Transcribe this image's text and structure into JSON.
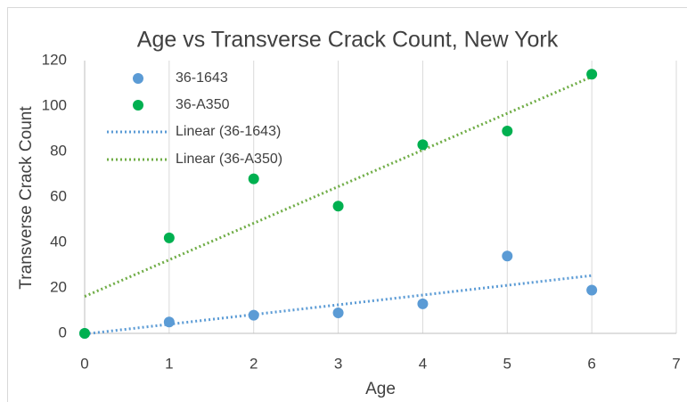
{
  "chart_data": {
    "type": "scatter",
    "title": "Age vs Transverse Crack Count, New York",
    "x_label": "Age",
    "y_label": "Transverse Crack Count",
    "series": [
      {
        "name": "36-1643",
        "color": "#5b9bd5",
        "x": [
          0,
          1,
          2,
          3,
          4,
          5,
          6
        ],
        "values": [
          0,
          5,
          8,
          9,
          13,
          34,
          19
        ],
        "trendline": {
          "name": "Linear (36-1643)",
          "type": "linear",
          "color": "#5b9bd5"
        }
      },
      {
        "name": "36-A350",
        "color": "#00b050",
        "x": [
          0,
          1,
          2,
          3,
          4,
          5,
          6
        ],
        "values": [
          0,
          42,
          68,
          56,
          83,
          89,
          114
        ],
        "trendline": {
          "name": "Linear (36-A350)",
          "type": "linear",
          "color": "#70ad47"
        }
      }
    ],
    "xlim": [
      0,
      7
    ],
    "xticks": [
      0,
      1,
      2,
      3,
      4,
      5,
      6,
      7
    ],
    "ylim": [
      0,
      120
    ],
    "yticks": [
      0,
      20,
      40,
      60,
      80,
      100,
      120
    ],
    "xgrid": true,
    "ygrid": false,
    "legend": "upper left"
  }
}
